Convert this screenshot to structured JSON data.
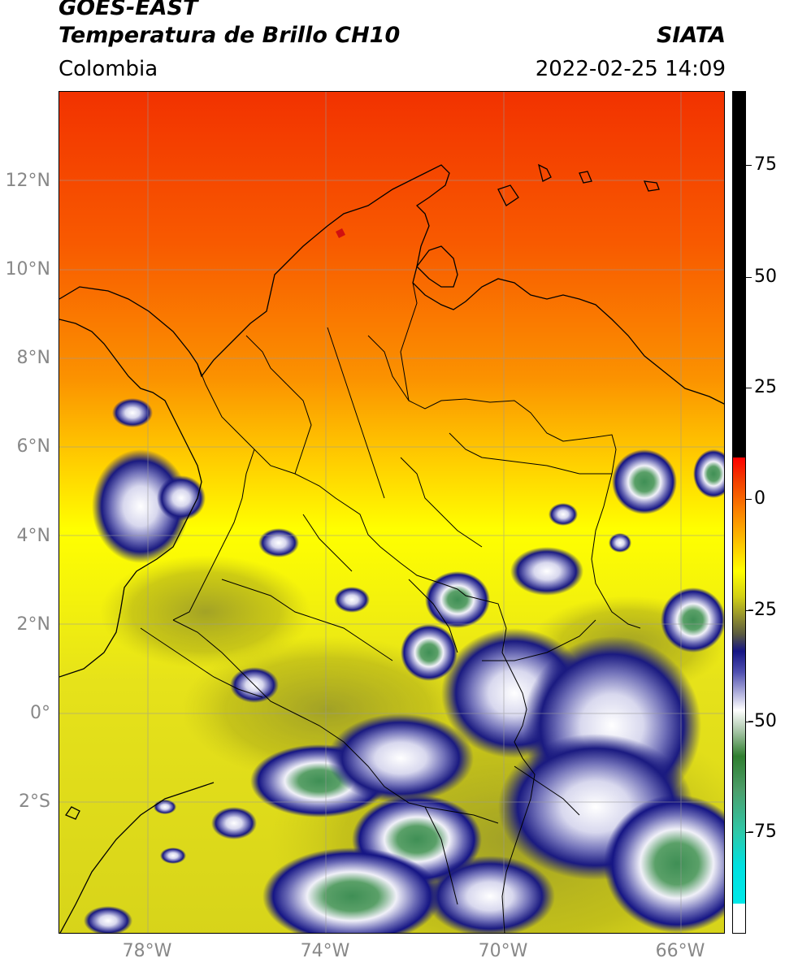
{
  "header": {
    "title_line1": "GOES-EAST",
    "title_line2": "Temperatura de Brillo CH10",
    "organization": "SIATA",
    "region": "Colombia",
    "timestamp": "2022-02-25 14:09"
  },
  "map": {
    "lat_ticks": [
      "12°N",
      "10°N",
      "8°N",
      "6°N",
      "4°N",
      "2°N",
      "0°",
      "2°S"
    ],
    "lon_ticks": [
      "78°W",
      "74°W",
      "70°W",
      "66°W"
    ],
    "lat_values": [
      12,
      10,
      8,
      6,
      4,
      2,
      0,
      -2
    ],
    "lon_values": [
      -78,
      -74,
      -70,
      -66
    ],
    "extent": {
      "lon_min": -80,
      "lon_max": -65,
      "lat_min": -5,
      "lat_max": 14
    },
    "colors": {
      "warm_red": "#f23a00",
      "orange": "#fb8400",
      "yellow": "#ffff00",
      "olive": "#b5b31a",
      "navy": "#151584",
      "white_cloud": "#eeeeff",
      "green_cloud": "#4d9b5c",
      "borders": "#000000"
    }
  },
  "colorbar": {
    "labels": [
      "75",
      "50",
      "25",
      "0",
      "-25",
      "-50",
      "-75"
    ],
    "values": [
      75,
      50,
      25,
      0,
      -25,
      -50,
      -75
    ],
    "range": [
      -100,
      90
    ]
  }
}
